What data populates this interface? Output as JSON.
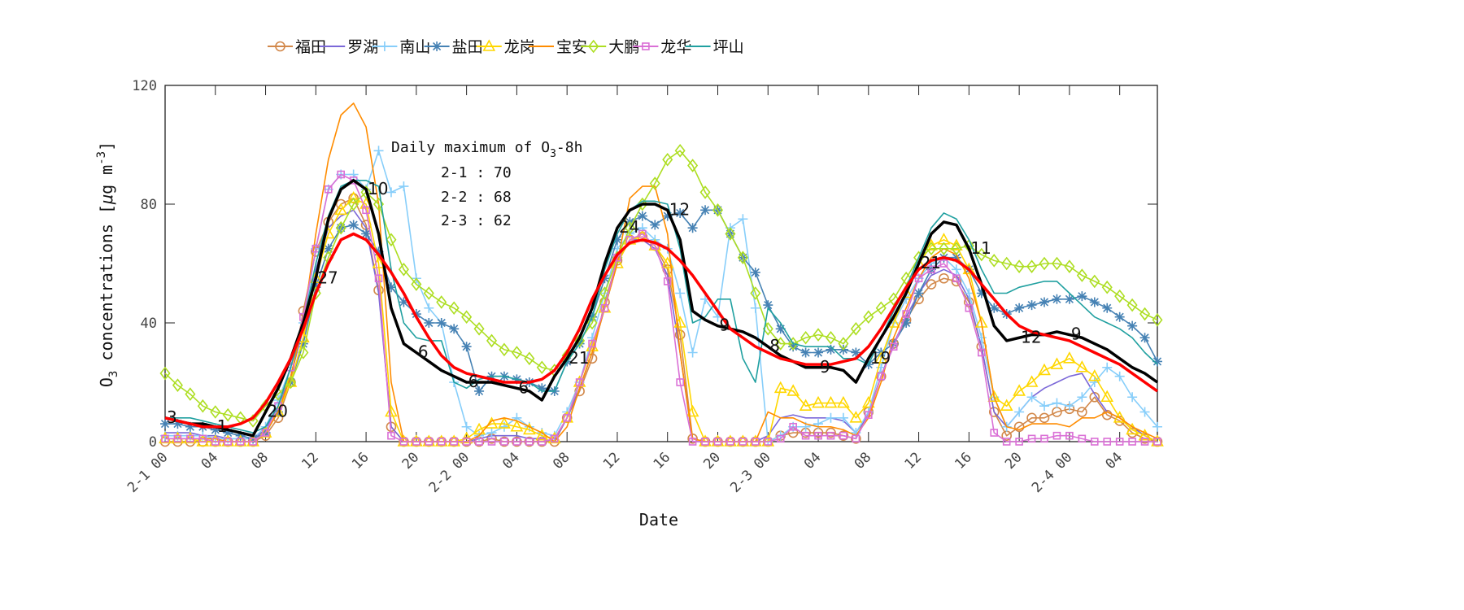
{
  "chart_data": {
    "type": "line",
    "xlabel": "Date",
    "ylabel": {
      "o": "O",
      "sub": "3",
      "mid": " concentrations [",
      "mu": "μ",
      "unit": "g m",
      "sup": "-3",
      "end": "]"
    },
    "ylim": [
      0,
      120
    ],
    "yticks": [
      0,
      40,
      80,
      120
    ],
    "xlim_hours": [
      0,
      79
    ],
    "x_start": "2-1 00",
    "x_step": "1 hour",
    "xtick_labels": [
      "2-1 00",
      "04",
      "08",
      "12",
      "16",
      "20",
      "2-2 00",
      "04",
      "08",
      "12",
      "16",
      "20",
      "2-3 00",
      "04",
      "08",
      "12",
      "16",
      "20",
      "2-4 00",
      "04"
    ],
    "grid": false,
    "legend_placement": "top",
    "annotation": {
      "title_main": "Daily maximum of O",
      "title_sub": "3",
      "title_end": "-8h",
      "lines": [
        "2-1 : 70",
        "2-2 : 68",
        "2-3 : 62"
      ]
    },
    "point_labels": [
      "3",
      "1",
      "20",
      "27",
      "10",
      "6",
      "6",
      "6",
      "21",
      "24",
      "12",
      "9",
      "8",
      "9",
      "19",
      "21",
      "11",
      "12",
      "9"
    ],
    "series": [
      {
        "name": "福田",
        "color": "#d2884a",
        "marker": "circle",
        "values": [
          0,
          0,
          0,
          0,
          0,
          0,
          0,
          0,
          2,
          8,
          20,
          44,
          64,
          74,
          80,
          82,
          73,
          51,
          5,
          0,
          0,
          0,
          0,
          0,
          0,
          0,
          1,
          0,
          0,
          0,
          0,
          0,
          8,
          17,
          28,
          47,
          61,
          68,
          69,
          66,
          58,
          36,
          1,
          0,
          0,
          0,
          0,
          0,
          0,
          2,
          3,
          3,
          3,
          3,
          2,
          1,
          10,
          22,
          33,
          41,
          48,
          53,
          55,
          54,
          47,
          32,
          10,
          2,
          5,
          8,
          8,
          10,
          11,
          10,
          15,
          9,
          7,
          3,
          1,
          0
        ]
      },
      {
        "name": "罗湖",
        "color": "#7b68d8",
        "marker": "none",
        "values": [
          3,
          3,
          3,
          2,
          2,
          1,
          1,
          1,
          4,
          12,
          22,
          38,
          58,
          72,
          76,
          78,
          72,
          50,
          5,
          0,
          0,
          0,
          0,
          0,
          0,
          1,
          2,
          2,
          2,
          1,
          1,
          0,
          8,
          18,
          30,
          45,
          60,
          68,
          68,
          65,
          56,
          30,
          0,
          0,
          0,
          0,
          0,
          0,
          2,
          8,
          9,
          8,
          8,
          8,
          7,
          3,
          9,
          22,
          33,
          42,
          50,
          56,
          58,
          56,
          48,
          32,
          10,
          5,
          10,
          15,
          18,
          20,
          22,
          23,
          16,
          10,
          8,
          5,
          2,
          0
        ]
      },
      {
        "name": "南山",
        "color": "#87cefa",
        "marker": "plus",
        "values": [
          2,
          2,
          2,
          2,
          1,
          1,
          1,
          1,
          5,
          14,
          25,
          40,
          65,
          85,
          90,
          90,
          85,
          98,
          84,
          86,
          55,
          45,
          40,
          20,
          5,
          2,
          3,
          5,
          8,
          5,
          3,
          2,
          10,
          20,
          35,
          50,
          65,
          70,
          72,
          68,
          65,
          50,
          30,
          48,
          42,
          72,
          75,
          45,
          0,
          2,
          5,
          5,
          6,
          8,
          8,
          3,
          10,
          25,
          40,
          48,
          55,
          60,
          62,
          58,
          50,
          35,
          15,
          5,
          10,
          15,
          12,
          13,
          12,
          15,
          20,
          25,
          22,
          15,
          10,
          5
        ]
      },
      {
        "name": "盐田",
        "color": "#4682b4",
        "marker": "star",
        "values": [
          6,
          6,
          5,
          5,
          4,
          3,
          2,
          1,
          3,
          10,
          20,
          33,
          52,
          65,
          72,
          73,
          70,
          64,
          52,
          47,
          43,
          40,
          40,
          38,
          32,
          17,
          22,
          22,
          21,
          20,
          18,
          17,
          27,
          33,
          42,
          55,
          68,
          74,
          76,
          73,
          76,
          77,
          72,
          78,
          78,
          70,
          62,
          57,
          46,
          38,
          32,
          30,
          30,
          31,
          31,
          30,
          26,
          30,
          33,
          40,
          50,
          58,
          62,
          62,
          58,
          50,
          45,
          43,
          45,
          46,
          47,
          48,
          48,
          49,
          47,
          45,
          42,
          39,
          35,
          27
        ]
      },
      {
        "name": "龙岗",
        "color": "#ffd700",
        "marker": "triangle",
        "values": [
          1,
          1,
          1,
          0,
          0,
          0,
          0,
          0,
          3,
          10,
          20,
          35,
          55,
          70,
          78,
          82,
          80,
          60,
          10,
          0,
          0,
          0,
          0,
          0,
          1,
          4,
          6,
          6,
          5,
          4,
          2,
          1,
          8,
          20,
          32,
          45,
          60,
          68,
          69,
          66,
          60,
          40,
          10,
          0,
          0,
          0,
          0,
          0,
          0,
          18,
          17,
          12,
          13,
          13,
          13,
          8,
          13,
          28,
          40,
          50,
          60,
          66,
          68,
          66,
          58,
          40,
          15,
          12,
          17,
          20,
          24,
          26,
          28,
          25,
          22,
          15,
          8,
          4,
          2,
          0
        ]
      },
      {
        "name": "宝安",
        "color": "#ff8c00",
        "marker": "none",
        "values": [
          1,
          1,
          1,
          1,
          1,
          0,
          0,
          0,
          3,
          10,
          22,
          40,
          70,
          95,
          110,
          114,
          106,
          80,
          20,
          0,
          0,
          0,
          0,
          0,
          0,
          2,
          7,
          8,
          7,
          5,
          3,
          0,
          5,
          18,
          30,
          45,
          60,
          82,
          86,
          86,
          70,
          30,
          1,
          0,
          0,
          0,
          0,
          0,
          10,
          8,
          8,
          6,
          5,
          5,
          4,
          2,
          8,
          20,
          35,
          45,
          55,
          62,
          65,
          63,
          55,
          40,
          15,
          5,
          4,
          6,
          6,
          6,
          5,
          8,
          8,
          10,
          8,
          5,
          3,
          1
        ]
      },
      {
        "name": "大鹏",
        "color": "#adde22",
        "marker": "diamond",
        "values": [
          23,
          19,
          16,
          12,
          10,
          9,
          8,
          7,
          12,
          16,
          20,
          30,
          50,
          62,
          72,
          80,
          84,
          80,
          68,
          58,
          53,
          50,
          47,
          45,
          42,
          38,
          34,
          31,
          30,
          28,
          25,
          24,
          29,
          34,
          40,
          50,
          62,
          72,
          80,
          87,
          95,
          98,
          93,
          84,
          78,
          70,
          62,
          50,
          38,
          33,
          33,
          35,
          36,
          35,
          33,
          38,
          42,
          45,
          48,
          55,
          62,
          65,
          65,
          65,
          66,
          63,
          61,
          60,
          59,
          59,
          60,
          60,
          59,
          56,
          54,
          52,
          49,
          46,
          43,
          41
        ]
      },
      {
        "name": "龙华",
        "color": "#da70d6",
        "marker": "square",
        "values": [
          1,
          1,
          1,
          1,
          0,
          0,
          0,
          0,
          3,
          12,
          25,
          42,
          65,
          85,
          90,
          88,
          78,
          55,
          2,
          0,
          0,
          0,
          0,
          0,
          0,
          0,
          0,
          0,
          0,
          0,
          0,
          1,
          8,
          20,
          33,
          45,
          62,
          68,
          70,
          66,
          54,
          20,
          0,
          0,
          0,
          0,
          0,
          0,
          0,
          1,
          5,
          2,
          2,
          2,
          2,
          1,
          9,
          22,
          32,
          43,
          55,
          58,
          60,
          55,
          45,
          30,
          3,
          0,
          0,
          1,
          1,
          2,
          2,
          1,
          0,
          0,
          0,
          0,
          0,
          0
        ]
      },
      {
        "name": "坪山",
        "color": "#20a0a0",
        "marker": "none",
        "values": [
          8,
          8,
          8,
          7,
          6,
          5,
          4,
          3,
          5,
          12,
          25,
          40,
          60,
          76,
          86,
          88,
          88,
          86,
          58,
          40,
          35,
          34,
          34,
          20,
          18,
          21,
          22,
          22,
          21,
          20,
          17,
          17,
          27,
          33,
          42,
          58,
          70,
          78,
          81,
          81,
          80,
          65,
          40,
          42,
          48,
          48,
          28,
          20,
          45,
          40,
          33,
          32,
          32,
          32,
          28,
          28,
          26,
          35,
          44,
          52,
          62,
          72,
          77,
          75,
          68,
          58,
          50,
          50,
          52,
          53,
          54,
          54,
          50,
          46,
          42,
          40,
          38,
          35,
          30,
          26
        ]
      },
      {
        "color": "#000000",
        "marker": "none",
        "width": 3.5,
        "values": [
          8,
          7,
          6,
          6,
          5,
          4,
          3,
          2,
          10,
          18,
          28,
          40,
          55,
          75,
          85,
          88,
          85,
          70,
          45,
          33,
          30,
          27,
          24,
          22,
          20,
          20,
          20,
          19,
          18,
          17,
          14,
          22,
          28,
          35,
          45,
          60,
          72,
          78,
          80,
          80,
          78,
          68,
          44,
          41,
          39,
          38,
          37,
          35,
          32,
          29,
          27,
          25,
          25,
          25,
          24,
          20,
          28,
          35,
          42,
          50,
          60,
          70,
          74,
          73,
          65,
          53,
          39,
          34,
          35,
          36,
          36,
          37,
          36,
          35,
          33,
          31,
          28,
          25,
          23,
          20
        ]
      },
      {
        "color": "#ff0000",
        "marker": "none",
        "width": 3.5,
        "values": [
          8,
          7,
          6,
          5,
          5,
          5,
          6,
          8,
          13,
          20,
          28,
          38,
          50,
          60,
          68,
          70,
          68,
          63,
          57,
          50,
          42,
          35,
          29,
          25,
          23,
          22,
          21,
          20,
          20,
          20,
          21,
          24,
          30,
          38,
          48,
          56,
          63,
          67,
          68,
          67,
          65,
          61,
          56,
          50,
          44,
          38,
          35,
          32,
          30,
          28,
          27,
          26,
          26,
          26,
          27,
          28,
          32,
          38,
          45,
          52,
          58,
          61,
          62,
          61,
          58,
          53,
          48,
          43,
          39,
          37,
          36,
          35,
          34,
          32,
          30,
          28,
          26,
          23,
          20,
          17
        ]
      }
    ]
  }
}
